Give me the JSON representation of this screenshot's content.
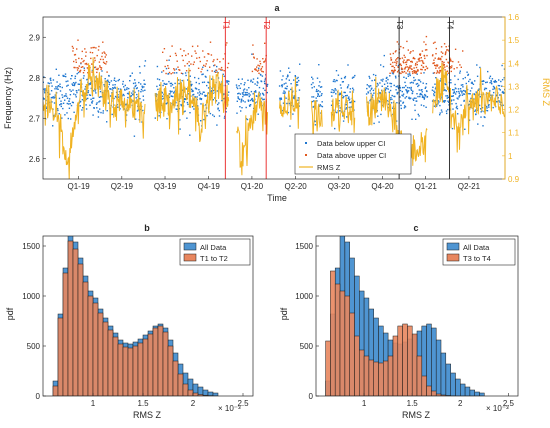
{
  "colors": {
    "below": "#1f77d0",
    "above": "#e0581e",
    "rms": "#f0b323",
    "red_marker": "#e82020",
    "black_marker": "#222222",
    "hist_all": "#4f95d2",
    "hist_t12": "#e8865e",
    "hist_t34": "#e8865e",
    "axis": "#262626",
    "grid": "#dddddd"
  },
  "chart_data": [
    {
      "panel": "a",
      "type": "scatter",
      "title": "a",
      "xlabel": "Time",
      "ylabel": "Frequency (Hz)",
      "ylabel_right": "RMS Z",
      "xlim": [
        "2018-12-01",
        "2021-07-31"
      ],
      "ylim": [
        2.55,
        2.95
      ],
      "ylim_right": [
        0.9,
        1.6
      ],
      "x_ticks": [
        {
          "label": "Q1-19",
          "date": "2019-02-14"
        },
        {
          "label": "Q2-19",
          "date": "2019-05-16"
        },
        {
          "label": "Q3-19",
          "date": "2019-08-15"
        },
        {
          "label": "Q4-19",
          "date": "2019-11-15"
        },
        {
          "label": "Q1-20",
          "date": "2020-02-14"
        },
        {
          "label": "Q2-20",
          "date": "2020-05-16"
        },
        {
          "label": "Q3-20",
          "date": "2020-08-15"
        },
        {
          "label": "Q4-20",
          "date": "2020-11-15"
        },
        {
          "label": "Q1-21",
          "date": "2021-02-14"
        },
        {
          "label": "Q2-21",
          "date": "2021-05-16"
        }
      ],
      "y_ticks": [
        "2.6",
        "2.7",
        "2.8",
        "2.9"
      ],
      "y_tick_values": [
        2.6,
        2.7,
        2.8,
        2.9
      ],
      "y_ticks_right": [
        "0.9",
        "1",
        "1.1",
        "1.2",
        "1.3",
        "1.4",
        "1.5",
        "1.6"
      ],
      "y_tick_values_right": [
        0.9,
        1.0,
        1.1,
        1.2,
        1.3,
        1.4,
        1.5,
        1.6
      ],
      "markers": [
        {
          "label": "T1",
          "date": "2019-12-20",
          "color": "red"
        },
        {
          "label": "T2",
          "date": "2020-03-15",
          "color": "red"
        },
        {
          "label": "T3",
          "date": "2020-12-20",
          "color": "black"
        },
        {
          "label": "T4",
          "date": "2021-04-05",
          "color": "black"
        }
      ],
      "data_gaps": [
        [
          "2019-07-05",
          "2019-07-25"
        ],
        [
          "2019-12-28",
          "2020-01-12"
        ],
        [
          "2020-03-18",
          "2020-04-12"
        ],
        [
          "2020-05-25",
          "2020-06-18"
        ],
        [
          "2020-07-12",
          "2020-07-30"
        ],
        [
          "2020-09-18",
          "2020-10-12"
        ],
        [
          "2021-02-18",
          "2021-02-28"
        ]
      ],
      "rms_series": [
        {
          "date": "2018-12-01",
          "v": 1.22
        },
        {
          "date": "2018-12-20",
          "v": 1.2
        },
        {
          "date": "2019-01-10",
          "v": 1.1
        },
        {
          "date": "2019-01-20",
          "v": 0.92
        },
        {
          "date": "2019-01-28",
          "v": 1.05
        },
        {
          "date": "2019-02-20",
          "v": 1.3
        },
        {
          "date": "2019-03-15",
          "v": 1.33
        },
        {
          "date": "2019-04-10",
          "v": 1.25
        },
        {
          "date": "2019-05-15",
          "v": 1.22
        },
        {
          "date": "2019-06-15",
          "v": 1.23
        },
        {
          "date": "2019-07-01",
          "v": 1.2
        },
        {
          "date": "2019-08-01",
          "v": 1.22
        },
        {
          "date": "2019-09-01",
          "v": 1.25
        },
        {
          "date": "2019-10-01",
          "v": 1.28
        },
        {
          "date": "2019-10-25",
          "v": 1.15
        },
        {
          "date": "2019-11-10",
          "v": 1.22
        },
        {
          "date": "2019-12-01",
          "v": 1.3
        },
        {
          "date": "2019-12-20",
          "v": 1.25
        },
        {
          "date": "2020-01-15",
          "v": 1.15
        },
        {
          "date": "2020-01-22",
          "v": 0.98
        },
        {
          "date": "2020-02-05",
          "v": 1.1
        },
        {
          "date": "2020-02-25",
          "v": 1.22
        },
        {
          "date": "2020-03-12",
          "v": 1.2
        },
        {
          "date": "2020-04-15",
          "v": 1.2
        },
        {
          "date": "2020-05-20",
          "v": 1.22
        },
        {
          "date": "2020-06-20",
          "v": 1.18
        },
        {
          "date": "2020-07-10",
          "v": 1.15
        },
        {
          "date": "2020-08-05",
          "v": 1.2
        },
        {
          "date": "2020-09-15",
          "v": 1.18
        },
        {
          "date": "2020-10-20",
          "v": 1.2
        },
        {
          "date": "2020-11-20",
          "v": 1.25
        },
        {
          "date": "2020-12-15",
          "v": 1.1
        },
        {
          "date": "2021-01-10",
          "v": 1.0
        },
        {
          "date": "2021-02-10",
          "v": 1.05
        },
        {
          "date": "2021-03-01",
          "v": 1.25
        },
        {
          "date": "2021-04-01",
          "v": 1.3
        },
        {
          "date": "2021-04-20",
          "v": 1.12
        },
        {
          "date": "2021-05-10",
          "v": 1.2
        },
        {
          "date": "2021-06-10",
          "v": 1.25
        },
        {
          "date": "2021-07-31",
          "v": 1.2
        }
      ],
      "legend": {
        "placement": "bottom-right",
        "entries": [
          {
            "key": "below",
            "label": "Data below upper CI"
          },
          {
            "key": "above",
            "label": "Data above upper CI"
          },
          {
            "key": "rms",
            "label": "RMS Z"
          }
        ]
      }
    },
    {
      "panel": "b",
      "type": "bar",
      "title": "b",
      "xlabel": "RMS Z",
      "ylabel": "pdf",
      "x_exponent": "× 10⁻³",
      "xlim": [
        0.5,
        2.6
      ],
      "ylim": [
        0,
        1600
      ],
      "x_ticks": [
        "1",
        "1.5",
        "2",
        "2.5"
      ],
      "x_tick_values": [
        1,
        1.5,
        2,
        2.5
      ],
      "y_ticks": [
        "0",
        "500",
        "1000",
        "1500"
      ],
      "y_tick_values": [
        0,
        500,
        1000,
        1500
      ],
      "bin_start": 0.6,
      "bin_width": 0.05,
      "series": [
        {
          "name": "All Data",
          "color_key": "hist_all",
          "values": [
            150,
            820,
            1280,
            1620,
            1540,
            1380,
            1200,
            1050,
            980,
            870,
            780,
            700,
            630,
            560,
            530,
            520,
            540,
            570,
            610,
            650,
            700,
            720,
            680,
            560,
            430,
            320,
            230,
            170,
            120,
            90,
            60,
            40,
            30
          ]
        },
        {
          "name": "T1 to T2",
          "color_key": "hist_t12",
          "values": [
            100,
            780,
            1230,
            1550,
            1470,
            1320,
            1140,
            1000,
            930,
            830,
            740,
            660,
            590,
            520,
            490,
            480,
            500,
            530,
            570,
            620,
            680,
            700,
            640,
            500,
            350,
            220,
            120,
            60,
            30,
            15,
            8,
            4,
            2
          ]
        }
      ],
      "legend": {
        "placement": "top-right"
      }
    },
    {
      "panel": "c",
      "type": "bar",
      "title": "c",
      "xlabel": "RMS Z",
      "ylabel": "pdf",
      "x_exponent": "× 10⁻³",
      "xlim": [
        0.5,
        2.6
      ],
      "ylim": [
        0,
        1600
      ],
      "x_ticks": [
        "1",
        "1.5",
        "2",
        "2.5"
      ],
      "x_tick_values": [
        1,
        1.5,
        2,
        2.5
      ],
      "y_ticks": [
        "0",
        "500",
        "1000",
        "1500"
      ],
      "y_tick_values": [
        0,
        500,
        1000,
        1500
      ],
      "bin_start": 0.6,
      "bin_width": 0.05,
      "series": [
        {
          "name": "All Data",
          "color_key": "hist_all",
          "values": [
            150,
            820,
            1280,
            1620,
            1540,
            1380,
            1200,
            1050,
            980,
            870,
            780,
            700,
            630,
            560,
            530,
            520,
            540,
            570,
            610,
            650,
            700,
            720,
            680,
            560,
            430,
            320,
            230,
            170,
            120,
            90,
            60,
            40,
            30
          ]
        },
        {
          "name": "T3 to T4",
          "color_key": "hist_t34",
          "values": [
            550,
            1250,
            1120,
            1050,
            1000,
            830,
            600,
            460,
            400,
            360,
            340,
            330,
            350,
            400,
            600,
            700,
            720,
            700,
            620,
            400,
            200,
            100,
            50,
            20,
            10,
            5,
            2,
            0,
            0,
            0,
            0,
            0,
            0
          ]
        }
      ],
      "legend": {
        "placement": "top-right"
      }
    }
  ]
}
